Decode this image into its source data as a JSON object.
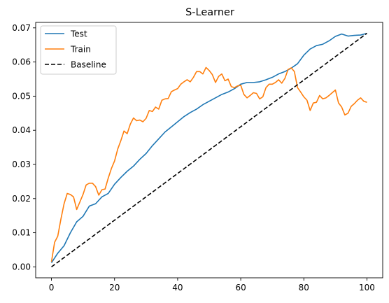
{
  "chart_data": {
    "type": "line",
    "title": "S-Learner",
    "xlabel": "",
    "ylabel": "",
    "xlim": [
      -5,
      105
    ],
    "ylim": [
      -0.0032,
      0.0716
    ],
    "xticks": [
      0,
      20,
      40,
      60,
      80,
      100
    ],
    "xtick_labels": [
      "0",
      "20",
      "40",
      "60",
      "80",
      "100"
    ],
    "yticks": [
      0,
      0.01,
      0.02,
      0.03,
      0.04,
      0.05,
      0.06,
      0.07
    ],
    "ytick_labels": [
      "0.00",
      "0.01",
      "0.02",
      "0.03",
      "0.04",
      "0.05",
      "0.06",
      "0.07"
    ],
    "grid": false,
    "legend": {
      "position": "top-left",
      "entries": [
        "Test",
        "Train",
        "Baseline"
      ]
    },
    "series": [
      {
        "name": "Test",
        "color": "#1f77b4",
        "style": "solid",
        "x": [
          0,
          2,
          4,
          6,
          8,
          10,
          12,
          14,
          16,
          18,
          20,
          22,
          24,
          26,
          28,
          30,
          32,
          34,
          36,
          38,
          40,
          42,
          44,
          46,
          48,
          50,
          52,
          54,
          56,
          58,
          60,
          62,
          64,
          66,
          68,
          70,
          72,
          74,
          76,
          78,
          80,
          82,
          84,
          86,
          88,
          90,
          92,
          94,
          96,
          98,
          100
        ],
        "y": [
          0.0012,
          0.004,
          0.0062,
          0.01,
          0.0132,
          0.0148,
          0.0178,
          0.0185,
          0.0205,
          0.0215,
          0.0242,
          0.0262,
          0.028,
          0.0295,
          0.0315,
          0.0332,
          0.0355,
          0.0375,
          0.0395,
          0.041,
          0.0425,
          0.044,
          0.0452,
          0.0462,
          0.0475,
          0.0485,
          0.0495,
          0.0505,
          0.0512,
          0.0522,
          0.0535,
          0.054,
          0.054,
          0.0542,
          0.0548,
          0.0555,
          0.0565,
          0.0572,
          0.0582,
          0.0595,
          0.062,
          0.0638,
          0.0648,
          0.0652,
          0.0662,
          0.0675,
          0.0682,
          0.0676,
          0.0678,
          0.0679,
          0.0684
        ]
      },
      {
        "name": "Train",
        "color": "#ff7f0e",
        "style": "solid",
        "x": [
          0,
          1,
          2,
          3,
          4,
          5,
          6,
          7,
          8,
          9,
          10,
          11,
          12,
          13,
          14,
          15,
          16,
          17,
          18,
          19,
          20,
          21,
          22,
          23,
          24,
          25,
          26,
          27,
          28,
          29,
          30,
          31,
          32,
          33,
          34,
          35,
          36,
          37,
          38,
          39,
          40,
          41,
          42,
          43,
          44,
          45,
          46,
          47,
          48,
          49,
          50,
          51,
          52,
          53,
          54,
          55,
          56,
          57,
          58,
          59,
          60,
          61,
          62,
          63,
          64,
          65,
          66,
          67,
          68,
          69,
          70,
          71,
          72,
          73,
          74,
          75,
          76,
          77,
          78,
          79,
          80,
          81,
          82,
          83,
          84,
          85,
          86,
          87,
          88,
          89,
          90,
          91,
          92,
          93,
          94,
          95,
          96,
          97,
          98,
          99,
          100
        ],
        "y": [
          0.0015,
          0.0072,
          0.009,
          0.014,
          0.0185,
          0.0215,
          0.0212,
          0.0205,
          0.0168,
          0.019,
          0.0212,
          0.024,
          0.0245,
          0.0245,
          0.0235,
          0.021,
          0.0226,
          0.0228,
          0.026,
          0.0288,
          0.031,
          0.0345,
          0.037,
          0.0398,
          0.039,
          0.0418,
          0.0436,
          0.0428,
          0.043,
          0.0425,
          0.0435,
          0.0458,
          0.0455,
          0.0468,
          0.0462,
          0.0488,
          0.0492,
          0.0493,
          0.0513,
          0.0518,
          0.0522,
          0.0535,
          0.0542,
          0.0548,
          0.0542,
          0.0555,
          0.0572,
          0.0572,
          0.0565,
          0.0584,
          0.0575,
          0.0563,
          0.054,
          0.0558,
          0.0565,
          0.0545,
          0.055,
          0.0528,
          0.0525,
          0.053,
          0.0532,
          0.0505,
          0.0495,
          0.0502,
          0.051,
          0.0508,
          0.0492,
          0.0498,
          0.0525,
          0.0535,
          0.0535,
          0.054,
          0.0548,
          0.0538,
          0.0552,
          0.0578,
          0.0583,
          0.0572,
          0.0525,
          0.0512,
          0.0498,
          0.0488,
          0.0458,
          0.048,
          0.0482,
          0.0502,
          0.0492,
          0.0495,
          0.0502,
          0.051,
          0.0518,
          0.048,
          0.0468,
          0.0445,
          0.045,
          0.047,
          0.0478,
          0.0488,
          0.0495,
          0.0485,
          0.0482
        ]
      },
      {
        "name": "Baseline",
        "color": "#000000",
        "style": "dashed",
        "x": [
          0,
          100
        ],
        "y": [
          0,
          0.0684
        ]
      }
    ]
  }
}
